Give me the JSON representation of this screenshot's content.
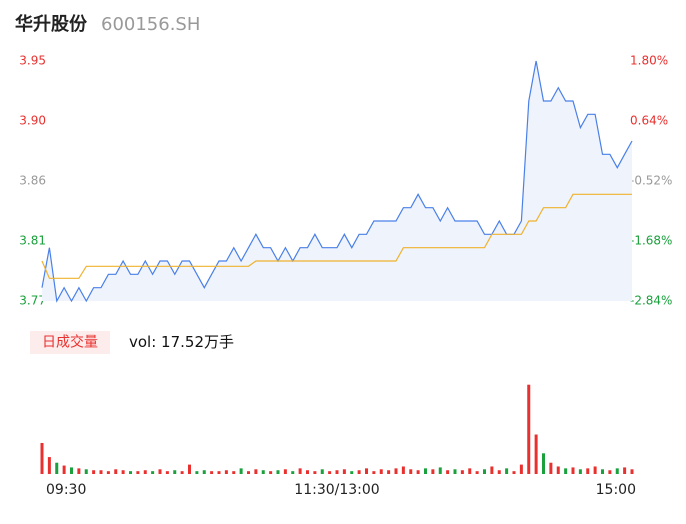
{
  "header": {
    "title": "华升股份",
    "code": "600156.SH"
  },
  "chart_data": [
    {
      "type": "line",
      "x": [
        0,
        3,
        6,
        9,
        12,
        15,
        18,
        21,
        24,
        27,
        30,
        33,
        36,
        39,
        42,
        45,
        48,
        51,
        54,
        57,
        60,
        63,
        66,
        69,
        72,
        75,
        78,
        81,
        84,
        87,
        90,
        93,
        96,
        99,
        102,
        105,
        108,
        111,
        114,
        117,
        120,
        123,
        126,
        129,
        132,
        135,
        138,
        141,
        144,
        147,
        150,
        153,
        156,
        159,
        162,
        165,
        168,
        171,
        174,
        177,
        180,
        183,
        186,
        189,
        192,
        195,
        198,
        201,
        204,
        207,
        210,
        213,
        216,
        219,
        222,
        225,
        228,
        231,
        234,
        237,
        240
      ],
      "xlim": [
        0,
        240
      ],
      "ylim": [
        3.77,
        3.95
      ],
      "yticks": [
        3.95,
        {
          "value": 3.905,
          "label": "3.90"
        },
        3.86,
        {
          "value": 3.815,
          "label": "3.81"
        },
        3.77
      ],
      "y2lim": [
        -2.84,
        1.8
      ],
      "y2ticks": [
        {
          "value": 1.8,
          "label": "1.80%"
        },
        {
          "value": 0.64,
          "label": "0.64%"
        },
        {
          "value": -0.52,
          "label": "-0.52%"
        },
        {
          "value": -1.68,
          "label": "-1.68%"
        },
        {
          "value": -2.84,
          "label": "-2.84%"
        }
      ],
      "up_color": "#e8312f",
      "down_color": "#1aa03c",
      "flat_color": "#999999",
      "area_color": "#eef3fc",
      "series": [
        {
          "color": "#4a80e8",
          "fill": true,
          "values": [
            3.78,
            3.81,
            3.77,
            3.78,
            3.77,
            3.78,
            3.77,
            3.78,
            3.78,
            3.79,
            3.79,
            3.8,
            3.79,
            3.79,
            3.8,
            3.79,
            3.8,
            3.8,
            3.79,
            3.8,
            3.8,
            3.79,
            3.78,
            3.79,
            3.8,
            3.8,
            3.81,
            3.8,
            3.81,
            3.82,
            3.81,
            3.81,
            3.8,
            3.81,
            3.8,
            3.81,
            3.81,
            3.82,
            3.81,
            3.81,
            3.81,
            3.82,
            3.81,
            3.82,
            3.82,
            3.83,
            3.83,
            3.83,
            3.83,
            3.84,
            3.84,
            3.85,
            3.84,
            3.84,
            3.83,
            3.84,
            3.83,
            3.83,
            3.83,
            3.83,
            3.82,
            3.82,
            3.83,
            3.82,
            3.82,
            3.83,
            3.92,
            3.95,
            3.92,
            3.92,
            3.93,
            3.92,
            3.92,
            3.9,
            3.91,
            3.91,
            3.88,
            3.88,
            3.87,
            3.88,
            3.89
          ]
        },
        {
          "color": "#f0b22e",
          "fill": false,
          "values": [
            3.8,
            3.787,
            3.787,
            3.787,
            3.787,
            3.787,
            3.796,
            3.796,
            3.796,
            3.796,
            3.796,
            3.796,
            3.796,
            3.796,
            3.796,
            3.796,
            3.796,
            3.796,
            3.796,
            3.796,
            3.796,
            3.796,
            3.796,
            3.796,
            3.796,
            3.796,
            3.796,
            3.796,
            3.796,
            3.8,
            3.8,
            3.8,
            3.8,
            3.8,
            3.8,
            3.8,
            3.8,
            3.8,
            3.8,
            3.8,
            3.8,
            3.8,
            3.8,
            3.8,
            3.8,
            3.8,
            3.8,
            3.8,
            3.8,
            3.81,
            3.81,
            3.81,
            3.81,
            3.81,
            3.81,
            3.81,
            3.81,
            3.81,
            3.81,
            3.81,
            3.81,
            3.82,
            3.82,
            3.82,
            3.82,
            3.82,
            3.83,
            3.83,
            3.84,
            3.84,
            3.84,
            3.84,
            3.85,
            3.85,
            3.85,
            3.85,
            3.85,
            3.85,
            3.85,
            3.85,
            3.85
          ]
        }
      ]
    },
    {
      "type": "bar",
      "label": "日成交量",
      "summary": "vol: 17.52万手",
      "x": [
        0,
        3,
        6,
        9,
        12,
        15,
        18,
        21,
        24,
        27,
        30,
        33,
        36,
        39,
        42,
        45,
        48,
        51,
        54,
        57,
        60,
        63,
        66,
        69,
        72,
        75,
        78,
        81,
        84,
        87,
        90,
        93,
        96,
        99,
        102,
        105,
        108,
        111,
        114,
        117,
        120,
        123,
        126,
        129,
        132,
        135,
        138,
        141,
        144,
        147,
        150,
        153,
        156,
        159,
        162,
        165,
        168,
        171,
        174,
        177,
        180,
        183,
        186,
        189,
        192,
        195,
        198,
        201,
        204,
        207,
        210,
        213,
        216,
        219,
        222,
        225,
        228,
        231,
        234,
        237,
        240
      ],
      "xlim": [
        0,
        240
      ],
      "xticks": [
        {
          "value": 0,
          "label": "09:30"
        },
        {
          "value": 120,
          "label": "11:30/13:00"
        },
        {
          "value": 240,
          "label": "15:00"
        }
      ],
      "ylim": [
        0,
        100
      ],
      "values": [
        33,
        18,
        12,
        9,
        7,
        6,
        5,
        4,
        4,
        3,
        5,
        4,
        3,
        3,
        4,
        3,
        5,
        3,
        4,
        3,
        10,
        3,
        4,
        3,
        3,
        4,
        3,
        6,
        3,
        5,
        4,
        3,
        4,
        5,
        3,
        6,
        4,
        3,
        5,
        3,
        4,
        5,
        3,
        4,
        6,
        3,
        5,
        4,
        6,
        8,
        5,
        4,
        6,
        5,
        7,
        4,
        5,
        4,
        6,
        3,
        5,
        8,
        4,
        6,
        3,
        10,
        95,
        42,
        22,
        12,
        8,
        6,
        7,
        5,
        6,
        8,
        5,
        4,
        6,
        7,
        5
      ]
    }
  ]
}
